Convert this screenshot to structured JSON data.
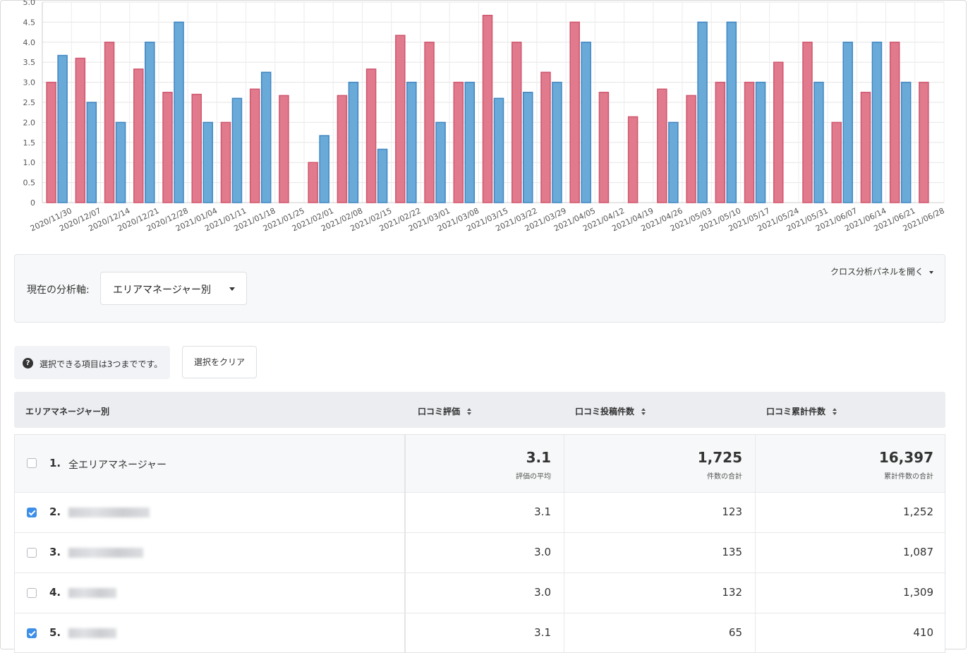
{
  "chart_data": {
    "type": "bar",
    "categories": [
      "2020/11/30",
      "2020/12/07",
      "2020/12/14",
      "2020/12/21",
      "2020/12/28",
      "2021/01/04",
      "2021/01/11",
      "2021/01/18",
      "2021/01/25",
      "2021/02/01",
      "2021/02/08",
      "2021/02/15",
      "2021/02/22",
      "2021/03/01",
      "2021/03/08",
      "2021/03/15",
      "2021/03/22",
      "2021/03/29",
      "2021/04/05",
      "2021/04/12",
      "2021/04/19",
      "2021/04/26",
      "2021/05/03",
      "2021/05/10",
      "2021/05/17",
      "2021/05/24",
      "2021/05/31",
      "2021/06/07",
      "2021/06/14",
      "2021/06/21",
      "2021/06/28"
    ],
    "series": [
      {
        "color": "#e07a8c",
        "values": [
          3.0,
          3.6,
          4.0,
          3.33,
          2.75,
          2.7,
          2.0,
          2.83,
          2.67,
          1.0,
          2.67,
          3.33,
          4.17,
          4.0,
          3.0,
          4.67,
          4.0,
          3.25,
          4.5,
          2.75,
          2.14,
          2.83,
          2.67,
          3.0,
          3.0,
          3.5,
          4.0,
          2.0,
          2.75,
          4.0,
          3.0
        ]
      },
      {
        "color": "#6aaad8",
        "values": [
          3.67,
          2.5,
          2.0,
          4.0,
          4.5,
          2.0,
          2.6,
          3.25,
          null,
          1.67,
          3.0,
          1.33,
          3.0,
          2.0,
          3.0,
          2.6,
          2.75,
          3.0,
          4.0,
          null,
          null,
          2.0,
          4.5,
          4.5,
          3.0,
          null,
          3.0,
          4.0,
          4.0,
          3.0,
          null
        ]
      }
    ],
    "ylim": [
      0,
      5
    ],
    "yticks": [
      "0",
      "0.5",
      "1.0",
      "1.5",
      "2.0",
      "2.5",
      "3.0",
      "3.5",
      "4.0",
      "4.5",
      "5.0"
    ],
    "grid": true
  },
  "panel": {
    "axis_label": "現在の分析軸:",
    "axis_value": "エリアマネージャー別",
    "cross_label": "クロス分析パネルを開く"
  },
  "note": {
    "icon": "?",
    "text": "選択できる項目は3つまでです。"
  },
  "clear_button": "選択をクリア",
  "table": {
    "headers": [
      "エリアマネージャー別",
      "口コミ評価",
      "口コミ投稿件数",
      "口コミ累計件数"
    ],
    "summary": {
      "rank": "1.",
      "name": "全エリアマネージャー",
      "rating": "3.1",
      "rating_sub": "評価の平均",
      "posts": "1,725",
      "posts_sub": "件数の合計",
      "total": "16,397",
      "total_sub": "累計件数の合計"
    },
    "rows": [
      {
        "rank": "2.",
        "checked": true,
        "rating": "3.1",
        "posts": "123",
        "total": "1,252"
      },
      {
        "rank": "3.",
        "checked": false,
        "rating": "3.0",
        "posts": "135",
        "total": "1,087"
      },
      {
        "rank": "4.",
        "checked": false,
        "rating": "3.0",
        "posts": "132",
        "total": "1,309"
      },
      {
        "rank": "5.",
        "checked": true,
        "rating": "3.1",
        "posts": "65",
        "total": "410"
      }
    ]
  }
}
